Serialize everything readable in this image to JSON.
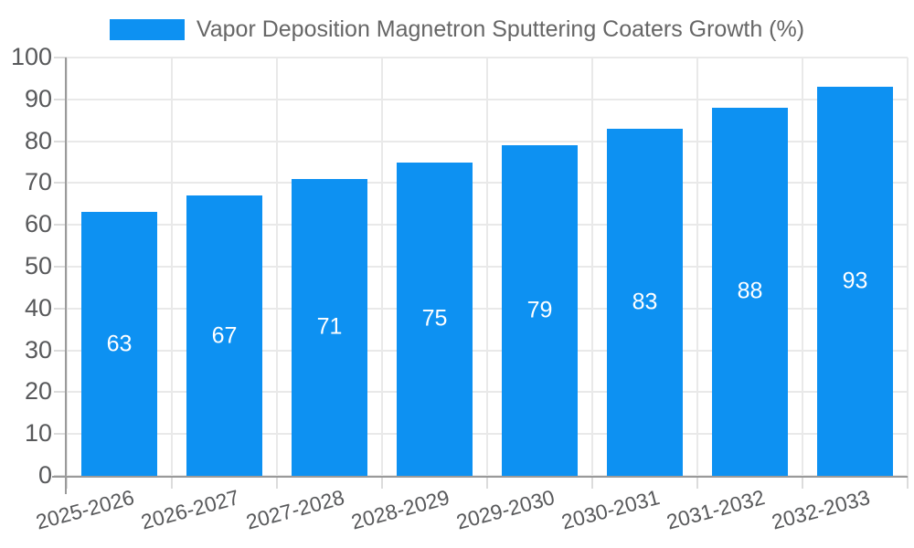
{
  "legend": {
    "label": "Vapor Deposition Magnetron Sputtering Coaters Growth (%)"
  },
  "chart_data": {
    "type": "bar",
    "title": "Vapor Deposition Magnetron Sputtering Coaters Growth (%)",
    "series": [
      {
        "name": "Vapor Deposition Magnetron Sputtering Coaters Growth (%)",
        "values": [
          63,
          67,
          71,
          75,
          79,
          83,
          88,
          93
        ]
      }
    ],
    "categories": [
      "2025-2026",
      "2026-2027",
      "2027-2028",
      "2028-2029",
      "2029-2030",
      "2030-2031",
      "2031-2032",
      "2032-2033"
    ],
    "value_labels": [
      "63",
      "67",
      "71",
      "75",
      "79",
      "83",
      "88",
      "93"
    ],
    "xlabel": "",
    "ylabel": "",
    "ylim": [
      0,
      100
    ],
    "yticks": [
      0,
      10,
      20,
      30,
      40,
      50,
      60,
      70,
      80,
      90,
      100
    ],
    "grid": true,
    "legend_position": "top",
    "colors": {
      "bar": "#0d91f2",
      "value_label": "#ffffff",
      "axis_line": "#9a9a9a",
      "gridline": "#e9e9e9",
      "tick_mark": "#dcdcdc",
      "axis_text": "#58595b",
      "legend_text": "#666666",
      "background": "#ffffff"
    }
  }
}
